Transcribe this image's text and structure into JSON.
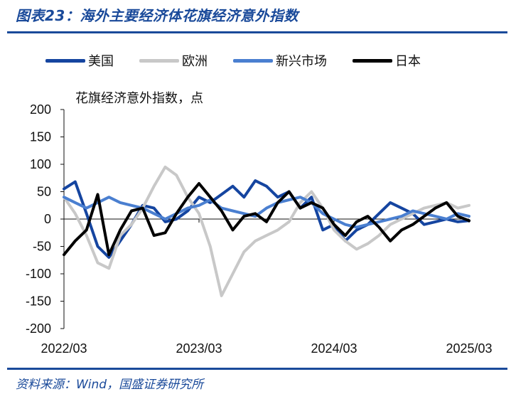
{
  "figure": {
    "title": "图表23：海外主要经济体花旗经济意外指数",
    "source": "资料来源：Wind，国盛证券研究所"
  },
  "colors": {
    "us": "#1545a0",
    "europe": "#c8c8c8",
    "em": "#4a7fd0",
    "japan": "#000000",
    "accent": "#1a4a9a"
  },
  "chart_data": {
    "type": "line",
    "unit_label": "花旗经济意外指数，点",
    "ylim": [
      -200,
      200
    ],
    "yticks": [
      200,
      150,
      100,
      50,
      0,
      -50,
      -100,
      -150,
      -200
    ],
    "xlim": [
      "2022-03",
      "2025-03"
    ],
    "xticks": [
      "2022/03",
      "2023/03",
      "2024/03",
      "2025/03"
    ],
    "grid": false,
    "legend_position": "top",
    "series": [
      {
        "name": "美国",
        "key": "us",
        "points": [
          [
            "2022-03",
            55
          ],
          [
            "2022-04",
            68
          ],
          [
            "2022-05",
            10
          ],
          [
            "2022-06",
            -50
          ],
          [
            "2022-07",
            -70
          ],
          [
            "2022-08",
            -40
          ],
          [
            "2022-09",
            -10
          ],
          [
            "2022-10",
            25
          ],
          [
            "2022-11",
            20
          ],
          [
            "2022-12",
            -5
          ],
          [
            "2023-01",
            0
          ],
          [
            "2023-02",
            15
          ],
          [
            "2023-03",
            40
          ],
          [
            "2023-04",
            30
          ],
          [
            "2023-05",
            45
          ],
          [
            "2023-06",
            60
          ],
          [
            "2023-07",
            40
          ],
          [
            "2023-08",
            70
          ],
          [
            "2023-09",
            60
          ],
          [
            "2023-10",
            40
          ],
          [
            "2023-11",
            50
          ],
          [
            "2023-12",
            20
          ],
          [
            "2024-01",
            40
          ],
          [
            "2024-02",
            -20
          ],
          [
            "2024-03",
            -10
          ],
          [
            "2024-04",
            -40
          ],
          [
            "2024-05",
            -20
          ],
          [
            "2024-06",
            -10
          ],
          [
            "2024-07",
            10
          ],
          [
            "2024-08",
            30
          ],
          [
            "2024-09",
            20
          ],
          [
            "2024-10",
            10
          ],
          [
            "2024-11",
            -10
          ],
          [
            "2024-12",
            -5
          ],
          [
            "2025-01",
            0
          ],
          [
            "2025-02",
            -5
          ],
          [
            "2025-03",
            -3
          ]
        ]
      },
      {
        "name": "欧洲",
        "key": "europe",
        "points": [
          [
            "2022-03",
            40
          ],
          [
            "2022-04",
            10
          ],
          [
            "2022-05",
            -30
          ],
          [
            "2022-06",
            -80
          ],
          [
            "2022-07",
            -90
          ],
          [
            "2022-08",
            -30
          ],
          [
            "2022-09",
            -10
          ],
          [
            "2022-10",
            20
          ],
          [
            "2022-11",
            60
          ],
          [
            "2022-12",
            95
          ],
          [
            "2023-01",
            80
          ],
          [
            "2023-02",
            40
          ],
          [
            "2023-03",
            10
          ],
          [
            "2023-04",
            -50
          ],
          [
            "2023-05",
            -140
          ],
          [
            "2023-06",
            -100
          ],
          [
            "2023-07",
            -60
          ],
          [
            "2023-08",
            -40
          ],
          [
            "2023-09",
            -30
          ],
          [
            "2023-10",
            -20
          ],
          [
            "2023-11",
            -5
          ],
          [
            "2023-12",
            30
          ],
          [
            "2024-01",
            50
          ],
          [
            "2024-02",
            20
          ],
          [
            "2024-03",
            -20
          ],
          [
            "2024-04",
            -40
          ],
          [
            "2024-05",
            -55
          ],
          [
            "2024-06",
            -45
          ],
          [
            "2024-07",
            -30
          ],
          [
            "2024-08",
            -10
          ],
          [
            "2024-09",
            0
          ],
          [
            "2024-10",
            10
          ],
          [
            "2024-11",
            20
          ],
          [
            "2024-12",
            25
          ],
          [
            "2025-01",
            30
          ],
          [
            "2025-02",
            20
          ],
          [
            "2025-03",
            25
          ]
        ]
      },
      {
        "name": "新兴市场",
        "key": "em",
        "points": [
          [
            "2022-03",
            40
          ],
          [
            "2022-04",
            30
          ],
          [
            "2022-05",
            20
          ],
          [
            "2022-06",
            30
          ],
          [
            "2022-07",
            40
          ],
          [
            "2022-08",
            30
          ],
          [
            "2022-09",
            25
          ],
          [
            "2022-10",
            20
          ],
          [
            "2022-11",
            10
          ],
          [
            "2022-12",
            0
          ],
          [
            "2023-01",
            10
          ],
          [
            "2023-02",
            20
          ],
          [
            "2023-03",
            25
          ],
          [
            "2023-04",
            35
          ],
          [
            "2023-05",
            20
          ],
          [
            "2023-06",
            15
          ],
          [
            "2023-07",
            10
          ],
          [
            "2023-08",
            5
          ],
          [
            "2023-09",
            20
          ],
          [
            "2023-10",
            30
          ],
          [
            "2023-11",
            35
          ],
          [
            "2023-12",
            40
          ],
          [
            "2024-01",
            30
          ],
          [
            "2024-02",
            10
          ],
          [
            "2024-03",
            0
          ],
          [
            "2024-04",
            -10
          ],
          [
            "2024-05",
            -15
          ],
          [
            "2024-06",
            -10
          ],
          [
            "2024-07",
            -5
          ],
          [
            "2024-08",
            0
          ],
          [
            "2024-09",
            5
          ],
          [
            "2024-10",
            15
          ],
          [
            "2024-11",
            10
          ],
          [
            "2024-12",
            5
          ],
          [
            "2025-01",
            0
          ],
          [
            "2025-02",
            10
          ],
          [
            "2025-03",
            5
          ]
        ]
      },
      {
        "name": "日本",
        "key": "japan",
        "points": [
          [
            "2022-03",
            -65
          ],
          [
            "2022-04",
            -40
          ],
          [
            "2022-05",
            -20
          ],
          [
            "2022-06",
            45
          ],
          [
            "2022-07",
            -65
          ],
          [
            "2022-08",
            -20
          ],
          [
            "2022-09",
            15
          ],
          [
            "2022-10",
            20
          ],
          [
            "2022-11",
            -30
          ],
          [
            "2022-12",
            -25
          ],
          [
            "2023-01",
            10
          ],
          [
            "2023-02",
            40
          ],
          [
            "2023-03",
            65
          ],
          [
            "2023-04",
            40
          ],
          [
            "2023-05",
            15
          ],
          [
            "2023-06",
            -20
          ],
          [
            "2023-07",
            5
          ],
          [
            "2023-08",
            10
          ],
          [
            "2023-09",
            -5
          ],
          [
            "2023-10",
            30
          ],
          [
            "2023-11",
            50
          ],
          [
            "2023-12",
            20
          ],
          [
            "2024-01",
            30
          ],
          [
            "2024-02",
            20
          ],
          [
            "2024-03",
            -10
          ],
          [
            "2024-04",
            -30
          ],
          [
            "2024-05",
            -5
          ],
          [
            "2024-06",
            5
          ],
          [
            "2024-07",
            -15
          ],
          [
            "2024-08",
            -40
          ],
          [
            "2024-09",
            -20
          ],
          [
            "2024-10",
            -10
          ],
          [
            "2024-11",
            5
          ],
          [
            "2024-12",
            20
          ],
          [
            "2025-01",
            30
          ],
          [
            "2025-02",
            5
          ],
          [
            "2025-03",
            -3
          ]
        ]
      }
    ]
  }
}
